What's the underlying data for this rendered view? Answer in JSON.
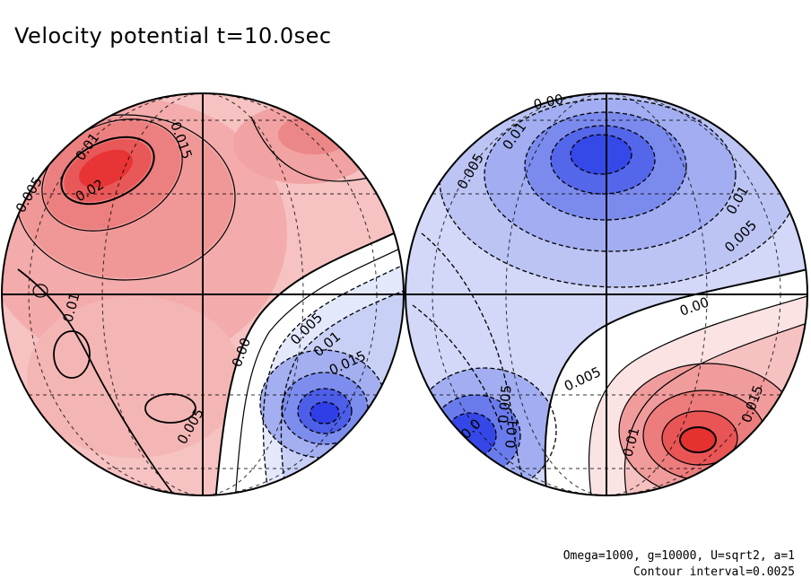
{
  "title": "Velocity potential t=10.0sec",
  "footer": {
    "params": "Omega=1000, g=10000, U=sqrt2, a=1",
    "interval": "Contour interval=0.0025"
  },
  "colors": {
    "positive": "#ee2222",
    "negative": "#2233ee",
    "neutral": "#ffffff",
    "line": "#000000"
  },
  "left_hemisphere": {
    "labels": [
      "0.01",
      "0.015",
      "0.02",
      "0.005",
      "0.01",
      "0.00",
      "0.005",
      "0.01",
      "0.015",
      "0.005"
    ]
  },
  "right_hemisphere": {
    "labels": [
      "0.00",
      "0.01",
      "0.005",
      "0.01",
      "0.005",
      "0.00",
      "0.005",
      "0.015",
      "0.01",
      "0.005",
      "0.01",
      "0.0"
    ]
  }
}
